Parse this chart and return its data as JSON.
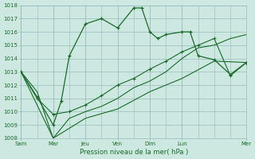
{
  "xlabel": "Pression niveau de la mer( hPa )",
  "bg_color": "#cce8e0",
  "grid_color": "#99bbbb",
  "line_color": "#1a6b2a",
  "ylim": [
    1008,
    1018
  ],
  "yticks": [
    1008,
    1009,
    1010,
    1011,
    1012,
    1013,
    1014,
    1015,
    1016,
    1017,
    1018
  ],
  "x_tick_labels": [
    "Sam",
    "Mar",
    "Jeu",
    "Ven",
    "Dim",
    "Lun",
    "Mer"
  ],
  "x_tick_positions": [
    0,
    2,
    4,
    6,
    8,
    10,
    14
  ],
  "xlim": [
    0,
    14
  ],
  "series1_x": [
    0,
    1,
    2,
    2.5,
    3,
    4,
    5,
    6,
    7,
    7.5,
    8,
    8.5,
    9,
    10,
    10.5,
    11,
    12,
    13,
    14
  ],
  "series1_y": [
    1013.0,
    1011.1,
    1009.0,
    1010.8,
    1014.2,
    1016.6,
    1017.0,
    1016.3,
    1017.8,
    1017.8,
    1016.0,
    1015.5,
    1015.8,
    1016.0,
    1016.0,
    1014.2,
    1013.9,
    1012.8,
    1013.7
  ],
  "series2_x": [
    0,
    1,
    2,
    3,
    4,
    5,
    6,
    7,
    8,
    9,
    10,
    11,
    12,
    13,
    14
  ],
  "series2_y": [
    1013.0,
    1011.0,
    1009.8,
    1010.0,
    1010.5,
    1011.2,
    1012.0,
    1012.5,
    1013.2,
    1013.8,
    1014.5,
    1015.0,
    1015.5,
    1012.7,
    1013.7
  ],
  "series3_x": [
    0,
    1,
    2,
    3,
    4,
    5,
    6,
    7,
    8,
    9,
    10,
    11,
    12,
    13,
    14
  ],
  "series3_y": [
    1013.0,
    1011.5,
    1008.0,
    1009.5,
    1010.0,
    1010.4,
    1011.0,
    1011.8,
    1012.3,
    1013.0,
    1014.0,
    1014.8,
    1015.0,
    1015.5,
    1015.8
  ],
  "series4_x": [
    0,
    2,
    4,
    6,
    8,
    10,
    12,
    14
  ],
  "series4_y": [
    1013.0,
    1008.0,
    1009.5,
    1010.2,
    1011.5,
    1012.5,
    1013.8,
    1013.7
  ]
}
